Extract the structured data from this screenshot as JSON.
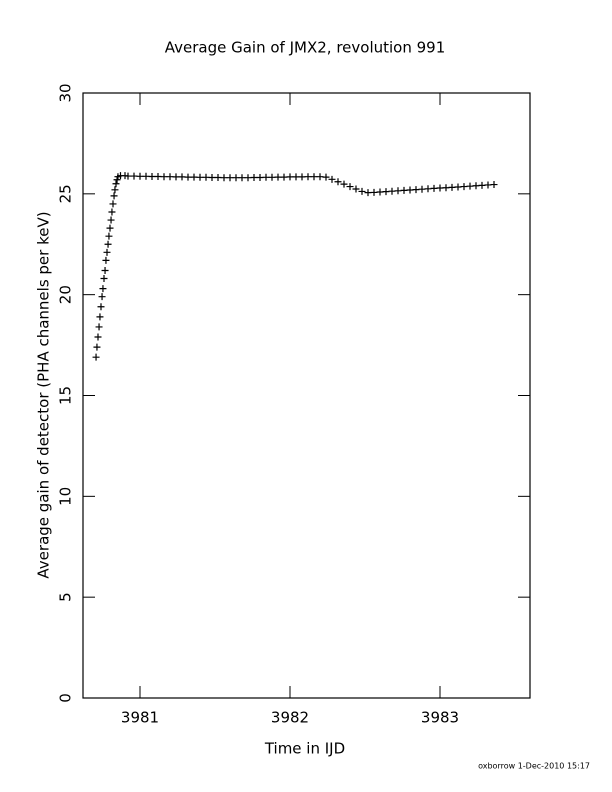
{
  "chart_data": {
    "type": "scatter",
    "title": "Average Gain of JMX2, revolution 991",
    "x_label": "Time in IJD",
    "y_label": "Average gain of detector (PHA channels per keV)",
    "footer": "oxborrow  1-Dec-2010 15:17",
    "marker": "plus",
    "color": "#000000",
    "xlim": [
      3980.62,
      3983.6
    ],
    "xticks": [
      3981,
      3982,
      3983
    ],
    "ylim": [
      0,
      30
    ],
    "yticks": [
      0,
      5,
      10,
      15,
      20,
      25,
      30
    ],
    "x": [
      3980.707,
      3980.713,
      3980.72,
      3980.727,
      3980.733,
      3980.74,
      3980.747,
      3980.753,
      3980.76,
      3980.767,
      3980.773,
      3980.78,
      3980.787,
      3980.793,
      3980.8,
      3980.807,
      3980.813,
      3980.82,
      3980.827,
      3980.833,
      3980.84,
      3980.847,
      3980.853,
      3980.87,
      3980.9,
      3980.92,
      3980.96,
      3981.0,
      3981.04,
      3981.08,
      3981.12,
      3981.16,
      3981.2,
      3981.24,
      3981.28,
      3981.32,
      3981.36,
      3981.4,
      3981.44,
      3981.48,
      3981.52,
      3981.56,
      3981.6,
      3981.64,
      3981.68,
      3981.72,
      3981.76,
      3981.8,
      3981.84,
      3981.88,
      3981.92,
      3981.96,
      3982.0,
      3982.04,
      3982.08,
      3982.12,
      3982.16,
      3982.2,
      3982.24,
      3982.28,
      3982.32,
      3982.36,
      3982.4,
      3982.44,
      3982.48,
      3982.52,
      3982.56,
      3982.6,
      3982.64,
      3982.68,
      3982.72,
      3982.76,
      3982.8,
      3982.84,
      3982.88,
      3982.92,
      3982.96,
      3983.0,
      3983.04,
      3983.08,
      3983.12,
      3983.16,
      3983.2,
      3983.24,
      3983.28,
      3983.32,
      3983.36
    ],
    "values": [
      16.9,
      17.4,
      17.9,
      18.4,
      18.9,
      19.4,
      19.9,
      20.3,
      20.8,
      21.2,
      21.7,
      22.1,
      22.5,
      22.9,
      23.3,
      23.7,
      24.1,
      24.5,
      24.9,
      25.2,
      25.5,
      25.7,
      25.85,
      25.9,
      25.9,
      25.88,
      25.88,
      25.87,
      25.87,
      25.86,
      25.86,
      25.85,
      25.85,
      25.84,
      25.84,
      25.83,
      25.83,
      25.82,
      25.82,
      25.81,
      25.81,
      25.8,
      25.8,
      25.8,
      25.8,
      25.8,
      25.81,
      25.81,
      25.82,
      25.82,
      25.83,
      25.83,
      25.84,
      25.84,
      25.84,
      25.85,
      25.85,
      25.85,
      25.83,
      25.72,
      25.6,
      25.48,
      25.36,
      25.24,
      25.12,
      25.06,
      25.07,
      25.09,
      25.11,
      25.13,
      25.15,
      25.17,
      25.19,
      25.21,
      25.23,
      25.25,
      25.27,
      25.29,
      25.3,
      25.32,
      25.34,
      25.36,
      25.38,
      25.4,
      25.42,
      25.44,
      25.46
    ]
  }
}
